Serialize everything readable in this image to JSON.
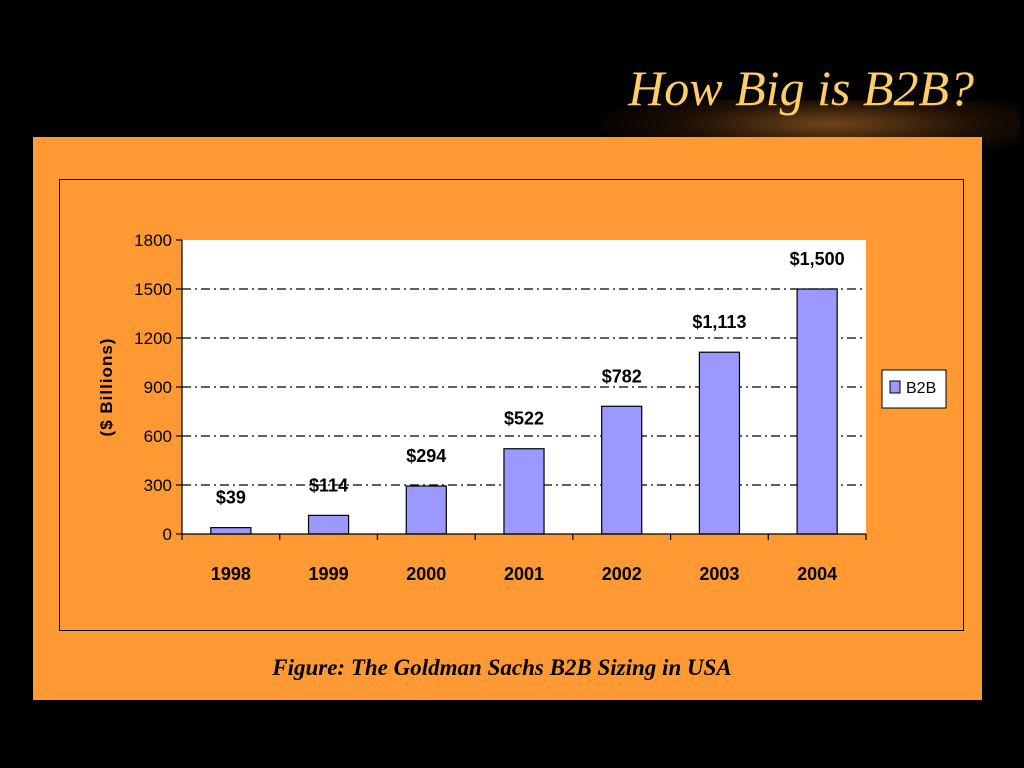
{
  "slide": {
    "title": "How Big is B2B?",
    "caption": "Figure: The Goldman Sachs B2B Sizing in USA"
  },
  "colors": {
    "background": "#000000",
    "title": "#FFCC66",
    "panel": "#FF9933",
    "bar": "#9999FF",
    "plot_area": "#FFFFFF"
  },
  "chart_data": {
    "type": "bar",
    "title": "",
    "xlabel": "",
    "ylabel": "($ Billions)",
    "categories": [
      "1998",
      "1999",
      "2000",
      "2001",
      "2002",
      "2003",
      "2004"
    ],
    "series": [
      {
        "name": "B2B",
        "values": [
          39,
          114,
          294,
          522,
          782,
          1113,
          1500
        ],
        "labels": [
          "$39",
          "$114",
          "$294",
          "$522",
          "$782",
          "$1,113",
          "$1,500"
        ]
      }
    ],
    "ylim": [
      0,
      1800
    ],
    "yticks": [
      0,
      300,
      600,
      900,
      1200,
      1500,
      1800
    ],
    "ytick_labels": [
      "0",
      "300",
      "600",
      "900",
      "1200",
      "1500",
      "1800"
    ],
    "grid": "horizontal dash-dot",
    "legend": "right"
  }
}
